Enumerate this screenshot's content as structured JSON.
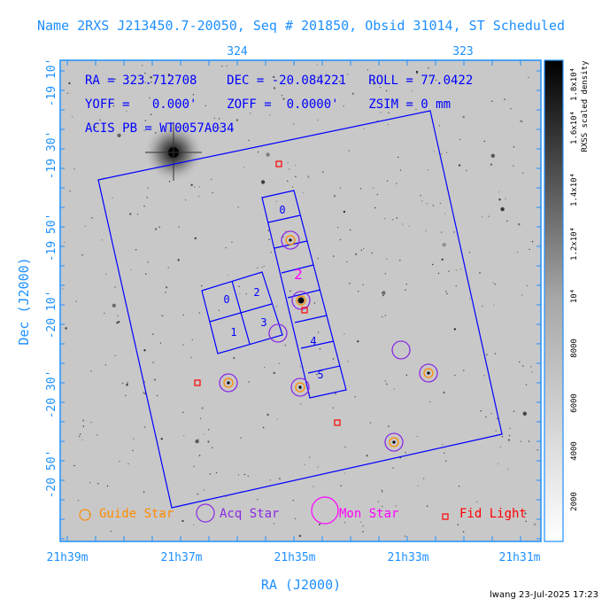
{
  "title": "Name 2RXS J213450.7-20050, Seq # 201850, Obsid 31014, ST Scheduled",
  "info": {
    "line1": "RA = 323.712708    DEC = -20.084221   ROLL = 77.0422",
    "line2": "YOFF =   0.000'    ZOFF =  0.0000'    ZSIM = 0 mm",
    "line3": "ACIS PB = WT0057A034"
  },
  "axes": {
    "x_label": "RA (J2000)",
    "y_label": "Dec (J2000)",
    "top_ticks": [
      "324",
      "323"
    ],
    "x_ticks": [
      "21h39m",
      "21h37m",
      "21h35m",
      "21h33m",
      "21h31m"
    ],
    "y_ticks": [
      "-19 10'",
      "-19 30'",
      "-19 50'",
      "-20 10'",
      "-20 30'",
      "-20 50'"
    ]
  },
  "colorbar": {
    "label": "RXSS scaled density",
    "ticks": [
      "2000",
      "4000",
      "6000",
      "8000",
      "10⁴",
      "1.2x10⁴",
      "1.4x10⁴",
      "1.6x10⁴",
      "1.8x10⁴"
    ]
  },
  "ccd_labels": [
    "0",
    "1",
    "2",
    "3",
    "0",
    "2",
    "4",
    "5"
  ],
  "legend": {
    "guide": "Guide Star",
    "acq": "Acq Star",
    "mon": "Mon Star",
    "fid": "Fid Light"
  },
  "footer": "lwang 23-Jul-2025 17:23",
  "colors": {
    "frame": "#1e90ff",
    "overlay": "#0000ff",
    "guide": "#ff8c00",
    "acq": "#8a2be2",
    "mon": "#ff00ff",
    "fid": "#ff0000"
  }
}
